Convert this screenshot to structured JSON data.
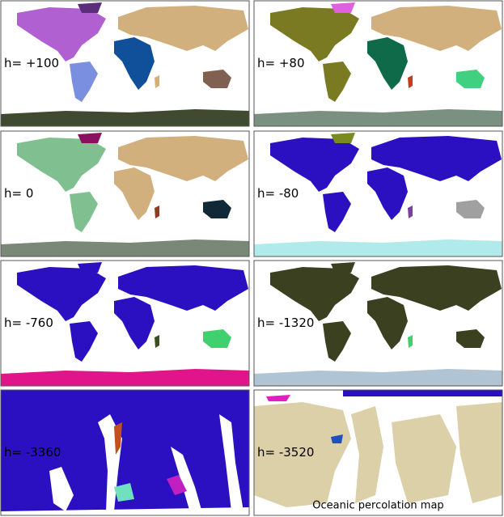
{
  "panels": [
    {
      "label": "h= +100"
    },
    {
      "label": "h= +80"
    },
    {
      "label": "h= 0"
    },
    {
      "label": "h= -80"
    },
    {
      "label": "h= -760"
    },
    {
      "label": "h= -1320"
    },
    {
      "label": "h= -3360"
    },
    {
      "label": "h= -3520"
    }
  ],
  "caption": "Oceanic percolation map"
}
